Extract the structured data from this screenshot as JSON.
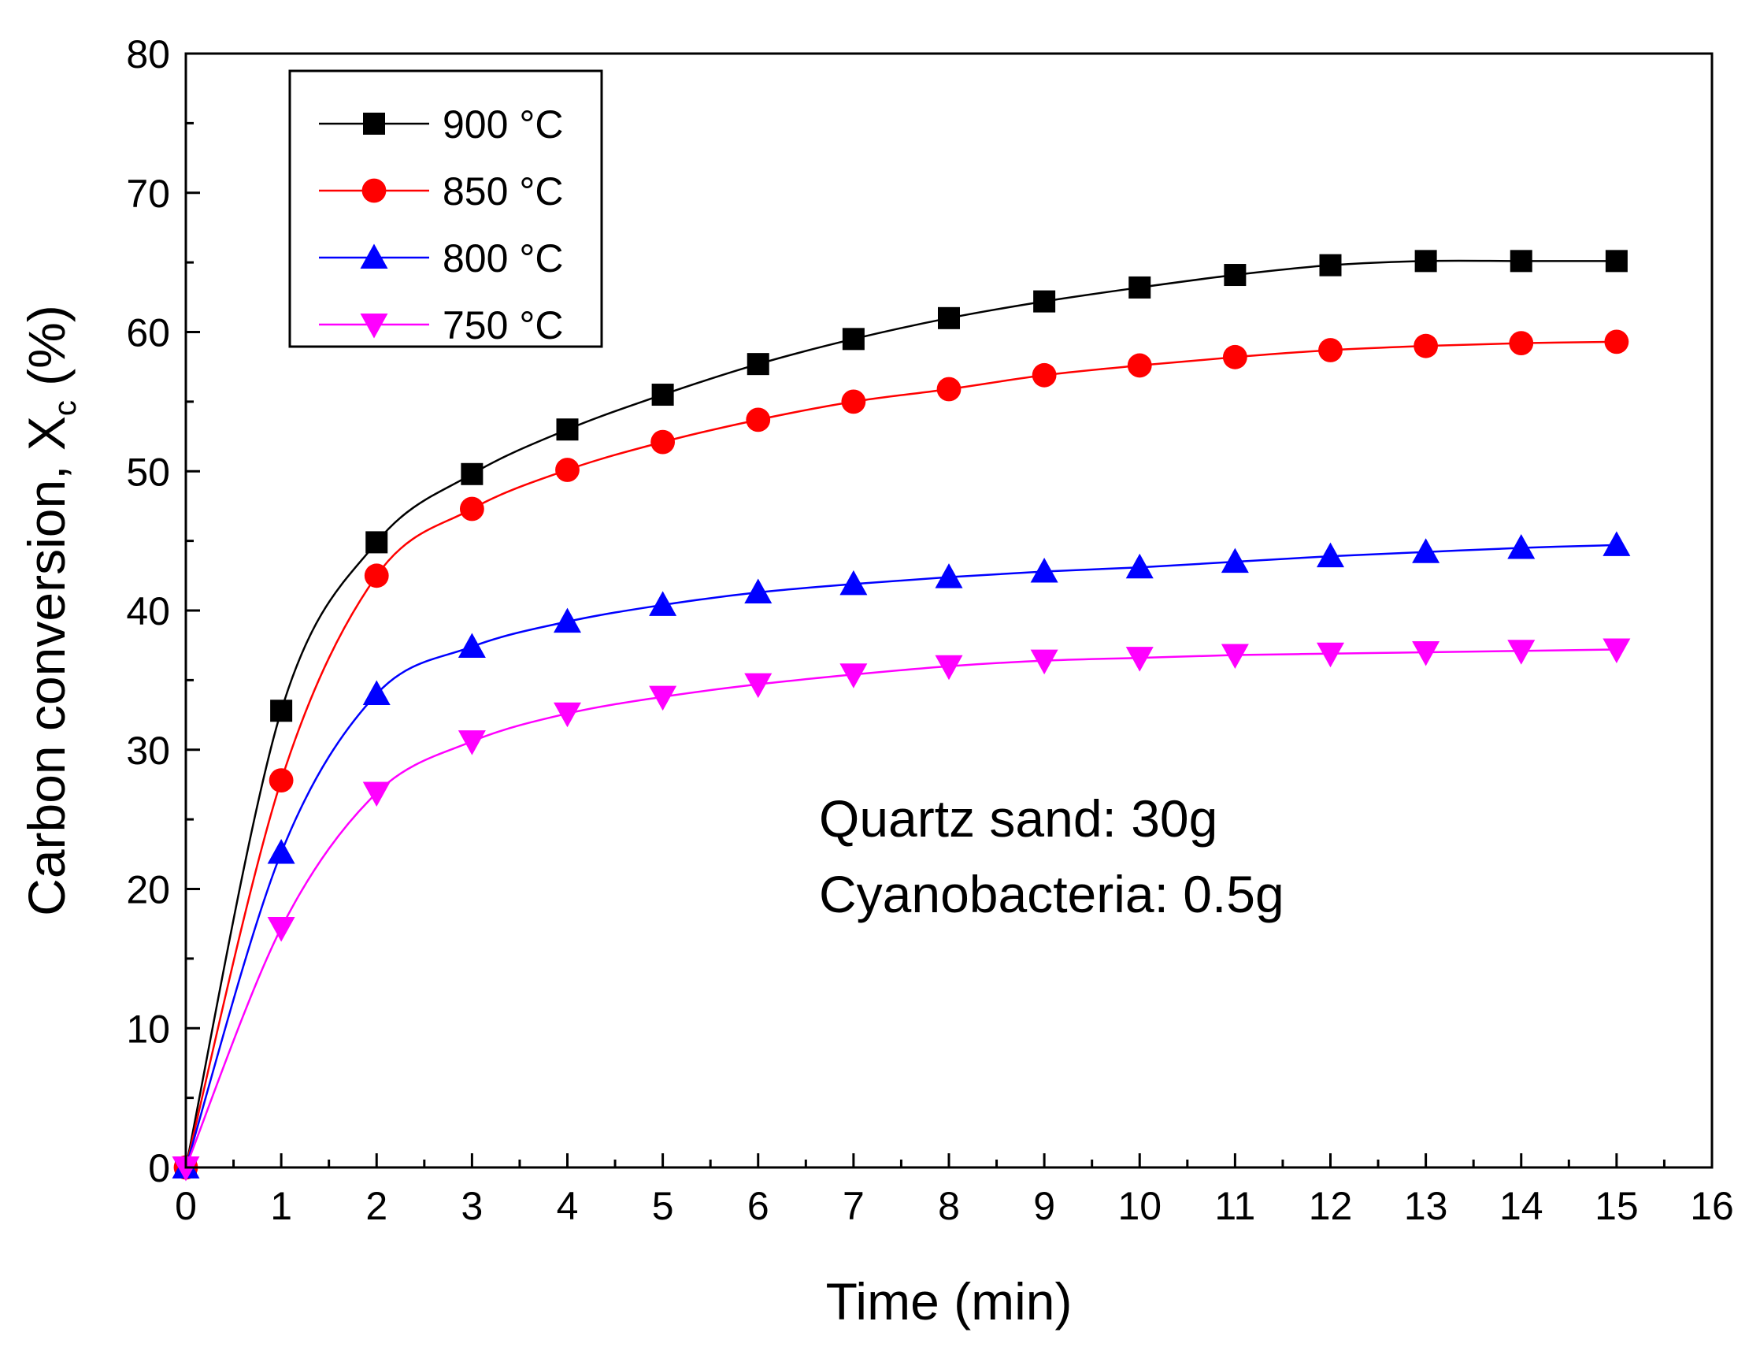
{
  "chart_data": {
    "type": "line",
    "title": "",
    "xlabel": "Time (min)",
    "ylabel_main": "Carbon conversion, X",
    "ylabel_sub": "c",
    "ylabel_unit": " (%)",
    "xlim": [
      0,
      16
    ],
    "ylim": [
      0,
      80
    ],
    "xticks": [
      0,
      1,
      2,
      3,
      4,
      5,
      6,
      7,
      8,
      9,
      10,
      11,
      12,
      13,
      14,
      15,
      16
    ],
    "yticks": [
      0,
      10,
      20,
      30,
      40,
      50,
      60,
      70,
      80
    ],
    "x": [
      0,
      1,
      2,
      3,
      4,
      5,
      6,
      7,
      8,
      9,
      10,
      11,
      12,
      13,
      14,
      15
    ],
    "series": [
      {
        "name": "900 °C",
        "temp": "900",
        "unit": "°C",
        "color": "#000000",
        "marker": "square",
        "values": [
          0,
          32.8,
          44.9,
          49.8,
          53.0,
          55.5,
          57.7,
          59.5,
          61.0,
          62.2,
          63.2,
          64.1,
          64.8,
          65.1,
          65.1,
          65.1
        ]
      },
      {
        "name": "850 °C",
        "temp": "850",
        "unit": "°C",
        "color": "#ff0000",
        "marker": "circle",
        "values": [
          0,
          27.8,
          42.5,
          47.3,
          50.1,
          52.1,
          53.7,
          55.0,
          55.9,
          56.9,
          57.6,
          58.2,
          58.7,
          59.0,
          59.2,
          59.3
        ]
      },
      {
        "name": "800 °C",
        "temp": "800",
        "unit": "°C",
        "color": "#0000ff",
        "marker": "triangle-up",
        "values": [
          0,
          22.6,
          34.0,
          37.4,
          39.2,
          40.4,
          41.3,
          41.9,
          42.4,
          42.8,
          43.1,
          43.5,
          43.9,
          44.2,
          44.5,
          44.7
        ]
      },
      {
        "name": "750 °C",
        "temp": "750",
        "unit": "°C",
        "color": "#ff00ff",
        "marker": "triangle-down",
        "values": [
          0,
          17.2,
          26.9,
          30.6,
          32.6,
          33.8,
          34.7,
          35.4,
          36.0,
          36.4,
          36.6,
          36.8,
          36.9,
          37.0,
          37.1,
          37.2
        ]
      }
    ],
    "annotations": [
      "Quartz sand: 30g",
      "Cyanobacteria: 0.5g"
    ],
    "legend_position": "top-left"
  }
}
